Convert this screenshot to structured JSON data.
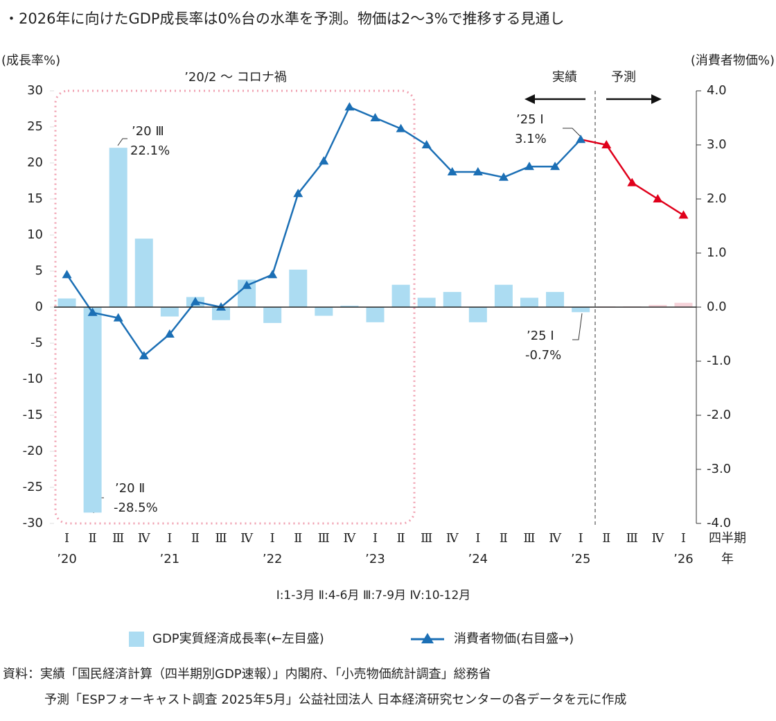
{
  "header": {
    "title": "・2026年に向けたGDP成長率は0%台の水準を予測。物価は2～3%で推移する見通し"
  },
  "chart_data": {
    "type": "bar-line",
    "y_label": "(成長率%)",
    "y2_label": "(消費者物価%)",
    "categories": [
      "Ⅰ",
      "Ⅱ",
      "Ⅲ",
      "Ⅳ",
      "Ⅰ",
      "Ⅱ",
      "Ⅲ",
      "Ⅳ",
      "Ⅰ",
      "Ⅱ",
      "Ⅲ",
      "Ⅳ",
      "Ⅰ",
      "Ⅱ",
      "Ⅲ",
      "Ⅳ",
      "Ⅰ",
      "Ⅱ",
      "Ⅲ",
      "Ⅳ",
      "Ⅰ",
      "Ⅱ",
      "Ⅲ",
      "Ⅳ",
      "Ⅰ"
    ],
    "category_years": [
      "’20",
      null,
      null,
      null,
      "’21",
      null,
      null,
      null,
      "’22",
      null,
      null,
      null,
      "’23",
      null,
      null,
      null,
      "’24",
      null,
      null,
      null,
      "’25",
      null,
      null,
      null,
      "’26"
    ],
    "x_label": [
      "四半期",
      "年"
    ],
    "ylim": [
      -30,
      30
    ],
    "yticks": [
      30,
      25,
      20,
      15,
      10,
      5,
      0,
      -5,
      -10,
      -15,
      -20,
      -25,
      -30
    ],
    "ytick_colors": [
      "#222",
      "#222",
      "#222",
      "#222",
      "#222",
      "#222",
      "#222",
      "#222",
      "#e0001b",
      "#e0001b",
      "#e0001b",
      "#e0001b",
      "#e0001b"
    ],
    "y2lim": [
      -4,
      4
    ],
    "y2ticks": [
      {
        "value": 4,
        "label": "4.0"
      },
      {
        "value": 3,
        "label": "3.0"
      },
      {
        "value": 2,
        "label": "2.0"
      },
      {
        "value": 1,
        "label": "1.0"
      },
      {
        "value": 0,
        "label": "0.0"
      },
      {
        "value": -1,
        "label": "-1.0"
      },
      {
        "value": -2,
        "label": "-2.0"
      },
      {
        "value": -3,
        "label": "-3.0"
      },
      {
        "value": -4,
        "label": "-4.0"
      }
    ],
    "y2tick_colors": [
      "#222",
      "#222",
      "#222",
      "#222",
      "#222",
      "#e0001b",
      "#e0001b",
      "#e0001b",
      "#e0001b"
    ],
    "series": [
      {
        "name": "GDP実質経済成長率(←左目盛)",
        "type": "bar",
        "color": "#acdcf2",
        "values": [
          1.2,
          -28.5,
          22.1,
          9.5,
          -1.3,
          1.4,
          -1.8,
          3.8,
          -2.2,
          5.2,
          -1.2,
          0.2,
          -2.1,
          3.1,
          1.3,
          2.1,
          -2.1,
          3.1,
          1.3,
          2.1,
          -0.7,
          0.1,
          0.1,
          0.3,
          0.6
        ],
        "colors": [
          "#acdcf2",
          "#acdcf2",
          "#acdcf2",
          "#acdcf2",
          "#acdcf2",
          "#acdcf2",
          "#acdcf2",
          "#acdcf2",
          "#acdcf2",
          "#acdcf2",
          "#acdcf2",
          "#acdcf2",
          "#acdcf2",
          "#acdcf2",
          "#acdcf2",
          "#acdcf2",
          "#acdcf2",
          "#acdcf2",
          "#acdcf2",
          "#acdcf2",
          "#acdcf2",
          "#f6d3da",
          "#f6d3da",
          "#f6d3da",
          "#f6d3da"
        ]
      },
      {
        "name": "消費者物価(右目盛→)",
        "type": "line",
        "axis": "y2",
        "color": "#1b6fb5",
        "values": [
          0.6,
          -0.1,
          -0.2,
          -0.9,
          -0.5,
          0.1,
          0.0,
          0.4,
          0.6,
          2.1,
          2.7,
          3.7,
          3.5,
          3.3,
          3.0,
          2.5,
          2.5,
          2.4,
          2.6,
          2.6,
          3.1,
          3.0,
          2.3,
          2.0,
          1.7
        ],
        "colors": [
          "#1b6fb5",
          "#1b6fb5",
          "#1b6fb5",
          "#1b6fb5",
          "#1b6fb5",
          "#1b6fb5",
          "#1b6fb5",
          "#1b6fb5",
          "#1b6fb5",
          "#1b6fb5",
          "#1b6fb5",
          "#1b6fb5",
          "#1b6fb5",
          "#1b6fb5",
          "#1b6fb5",
          "#1b6fb5",
          "#1b6fb5",
          "#1b6fb5",
          "#1b6fb5",
          "#1b6fb5",
          "#1b6fb5",
          "#e0001b",
          "#e0001b",
          "#e0001b",
          "#e0001b"
        ]
      }
    ],
    "annotations": [
      {
        "lines": [
          "’20 Ⅲ",
          "22.1%"
        ],
        "color": "#222"
      },
      {
        "lines": [
          "’20 Ⅱ",
          "-28.5%"
        ],
        "color": "#e0001b"
      },
      {
        "lines": [
          "’25 Ⅰ",
          "-0.7%"
        ],
        "color": "#222"
      },
      {
        "lines": [
          "’25 Ⅰ",
          "3.1%"
        ],
        "color": "#222"
      },
      {
        "lines": [
          "’20/2 ～ コロナ禍"
        ],
        "color": "#e0001b"
      },
      {
        "lines": [
          "実績"
        ],
        "color": "#222"
      },
      {
        "lines": [
          "予測"
        ],
        "color": "#222"
      }
    ],
    "quarter_note": "Ⅰ:1-3月 Ⅱ:4-6月 Ⅲ:7-9月 Ⅳ:10-12月"
  },
  "footer": {
    "source": [
      "資料：実績「国民経済計算（四半期別GDP速報）」内閣府、「小売物価統計調査」総務省",
      "予測「ESPフォーキャスト調査 2025年5月」公益社団法人 日本経済研究センターの各データを元に作成"
    ]
  }
}
